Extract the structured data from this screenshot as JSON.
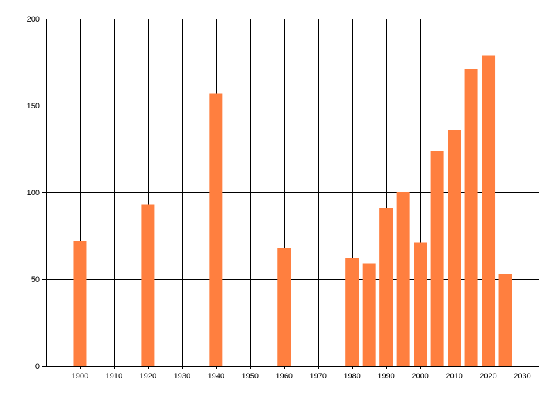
{
  "chart_data": {
    "type": "bar",
    "title": "",
    "xlabel": "",
    "ylabel": "",
    "x": [
      1900,
      1920,
      1940,
      1960,
      1980,
      1985,
      1990,
      1995,
      2000,
      2005,
      2010,
      2015,
      2020,
      2025
    ],
    "values": [
      72,
      93,
      157,
      68,
      62,
      59,
      91,
      100,
      71,
      124,
      136,
      171,
      179,
      53
    ],
    "xlim": [
      1890,
      2035
    ],
    "ylim": [
      0,
      200
    ],
    "x_ticks": [
      1900,
      1910,
      1920,
      1930,
      1940,
      1950,
      1960,
      1970,
      1980,
      1990,
      2000,
      2010,
      2020,
      2030
    ],
    "y_ticks": [
      0,
      50,
      100,
      150,
      200
    ],
    "grid": true,
    "bar_color": "#ff7f3f",
    "grid_color": "#000000"
  }
}
